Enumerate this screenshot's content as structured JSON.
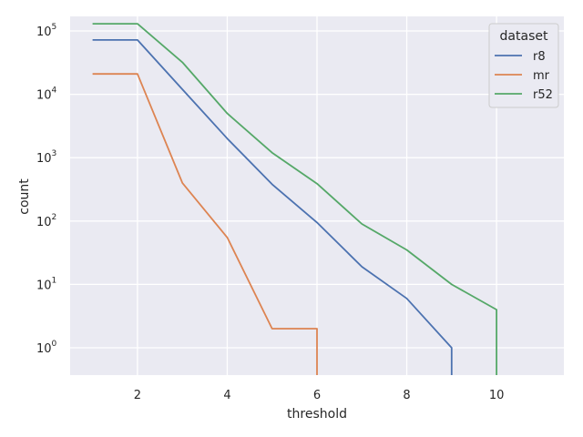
{
  "chart_data": {
    "type": "line",
    "title": "",
    "xlabel": "threshold",
    "ylabel": "count",
    "xlim": [
      0.5,
      11.5
    ],
    "ylim": [
      0.55,
      200000
    ],
    "yscale": "log",
    "grid": true,
    "x_ticks": [
      2,
      4,
      6,
      8,
      10
    ],
    "y_ticks": [
      1,
      10,
      100,
      1000,
      10000,
      100000
    ],
    "y_tick_labels": [
      {
        "base": "10",
        "exp": "0"
      },
      {
        "base": "10",
        "exp": "1"
      },
      {
        "base": "10",
        "exp": "2"
      },
      {
        "base": "10",
        "exp": "3"
      },
      {
        "base": "10",
        "exp": "4"
      },
      {
        "base": "10",
        "exp": "5"
      }
    ],
    "legend": {
      "title": "dataset",
      "position": "top-right"
    },
    "series": [
      {
        "name": "r8",
        "color": "#4c72b0",
        "x": [
          1,
          2,
          3,
          4,
          5,
          6,
          7,
          8,
          9,
          9
        ],
        "y": [
          72000,
          72000,
          12000,
          2000,
          380,
          95,
          19,
          6,
          1,
          0
        ]
      },
      {
        "name": "mr",
        "color": "#dd8452",
        "x": [
          1,
          2,
          3,
          4,
          5,
          6,
          6
        ],
        "y": [
          21000,
          21000,
          400,
          55,
          2,
          2,
          0
        ]
      },
      {
        "name": "r52",
        "color": "#55a868",
        "x": [
          1,
          2,
          3,
          4,
          5,
          6,
          7,
          8,
          9,
          10,
          10
        ],
        "y": [
          130000,
          130000,
          32000,
          5000,
          1200,
          390,
          90,
          35,
          10,
          4,
          0
        ]
      }
    ]
  }
}
